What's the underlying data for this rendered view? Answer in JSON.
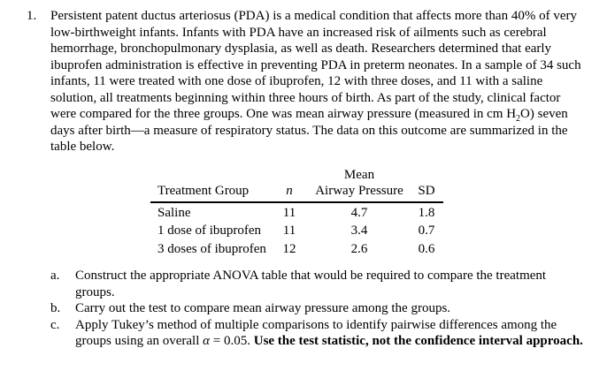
{
  "page": {
    "problem_number": "1.",
    "paragraph": {
      "part1": "Persistent patent ductus arteriosus (PDA) is a medical condition that affects more than 40% of very low-birthweight infants. Infants with PDA have an increased risk of ailments such as cerebral hemorrhage, bronchopulmonary dysplasia, as well as death. Researchers determined that early ibuprofen administration is effective in preventing PDA in preterm neonates. In a sample of 34 such infants, 11 were treated with one dose of ibuprofen, 12 with three doses, and 11 with a saline solution, all treatments beginning within three hours of birth. As part of the study, clinical factor were compared for the three groups. One was mean airway pressure (measured in cm H",
      "h2o_subscript": "2",
      "part2": "O) seven days after birth—a measure of respiratory status. The data on this outcome are summarized in the table below."
    },
    "table": {
      "headers": {
        "group": "Treatment Group",
        "n": "n",
        "mean_line1": "Mean",
        "mean_line2": "Airway Pressure",
        "sd": "SD"
      },
      "rows": [
        {
          "group": "Saline",
          "n": "11",
          "mean": "4.7",
          "sd": "1.8"
        },
        {
          "group": "1 dose of ibuprofen",
          "n": "11",
          "mean": "3.4",
          "sd": "0.7"
        },
        {
          "group": "3 doses of ibuprofen",
          "n": "12",
          "mean": "2.6",
          "sd": "0.6"
        }
      ]
    },
    "questions": {
      "a": {
        "label": "a.",
        "text": "Construct the appropriate ANOVA table that would be required to compare the treatment groups."
      },
      "b": {
        "label": "b.",
        "text": "Carry out the test to compare mean airway pressure among the groups."
      },
      "c": {
        "label": "c.",
        "before_alpha": "Apply Tukey’s method of multiple comparisons to identify pairwise differences among the groups using an overall ",
        "alpha": "α",
        "after_alpha": " = 0.05. ",
        "bold": "Use the test statistic, not the confidence interval approach."
      }
    }
  }
}
